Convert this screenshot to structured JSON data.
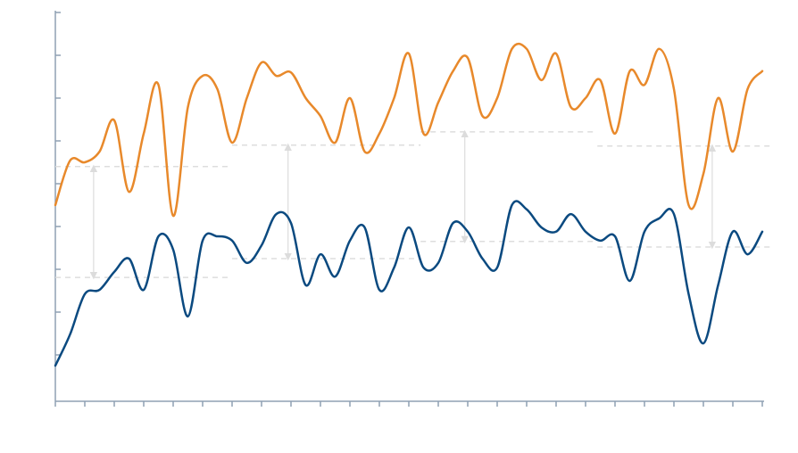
{
  "chart_data": {
    "type": "line",
    "x": [
      0,
      0.5,
      1,
      1.5,
      2,
      2.5,
      3,
      3.5,
      4,
      4.5,
      5,
      5.5,
      6,
      6.5,
      7,
      7.5,
      8,
      8.5,
      9,
      9.5,
      10,
      10.5,
      11,
      11.5,
      12,
      12.5,
      13,
      13.5,
      14,
      14.5,
      15,
      15.5,
      16,
      16.5,
      17,
      17.5,
      18,
      18.5,
      19,
      19.5,
      20,
      20.5,
      21,
      21.5,
      22,
      22.5,
      23,
      23.5,
      24
    ],
    "series": [
      {
        "color": "#e8892b",
        "values": [
          4.5,
          5.54,
          5.5,
          5.75,
          6.48,
          4.81,
          6.17,
          7.31,
          4.25,
          6.79,
          7.52,
          7.21,
          5.96,
          7.0,
          7.83,
          7.52,
          7.6,
          7.0,
          6.58,
          5.96,
          7.0,
          5.75,
          6.17,
          7.0,
          8.04,
          6.17,
          6.9,
          7.63,
          7.94,
          6.58,
          7.0,
          8.15,
          8.15,
          7.42,
          8.04,
          6.79,
          7.0,
          7.42,
          6.17,
          7.63,
          7.31,
          8.15,
          7.21,
          4.5,
          5.23,
          7.0,
          5.75,
          7.21,
          7.63
        ]
      },
      {
        "color": "#0b4a80",
        "values": [
          0.75,
          1.48,
          2.42,
          2.52,
          2.94,
          3.25,
          2.52,
          3.77,
          3.46,
          1.9,
          3.67,
          3.77,
          3.67,
          3.15,
          3.56,
          4.29,
          4.08,
          2.63,
          3.35,
          2.83,
          3.67,
          3.98,
          2.52,
          3.04,
          3.98,
          3.04,
          3.15,
          4.08,
          3.88,
          3.25,
          3.04,
          4.5,
          4.4,
          3.98,
          3.88,
          4.29,
          3.88,
          3.67,
          3.77,
          2.73,
          3.88,
          4.19,
          4.29,
          2.42,
          1.27,
          2.63,
          3.88,
          3.35,
          3.88
        ]
      }
    ],
    "periods": [
      {
        "start": 0,
        "end": 6,
        "arrow_x": 1.3,
        "means": [
          5.4,
          2.81
        ]
      },
      {
        "start": 6,
        "end": 12.4,
        "arrow_x": 7.9,
        "means": [
          5.9,
          3.25
        ]
      },
      {
        "start": 12.4,
        "end": 18.4,
        "arrow_x": 13.9,
        "means": [
          6.21,
          3.65
        ]
      },
      {
        "start": 18.4,
        "end": 24.4,
        "arrow_x": 22.3,
        "means": [
          5.88,
          3.52
        ]
      }
    ],
    "xlim": [
      0,
      24
    ],
    "xticks": [
      0,
      1,
      2,
      3,
      4,
      5,
      6,
      7,
      8,
      9,
      10,
      11,
      12,
      13,
      14,
      15,
      16,
      17,
      18,
      19,
      20,
      21,
      22,
      23,
      24
    ],
    "ylim": [
      0,
      9
    ],
    "yticks": [
      1,
      2,
      3,
      4,
      5,
      6,
      7,
      8,
      9
    ],
    "axis_color": "#8fa0b3"
  }
}
